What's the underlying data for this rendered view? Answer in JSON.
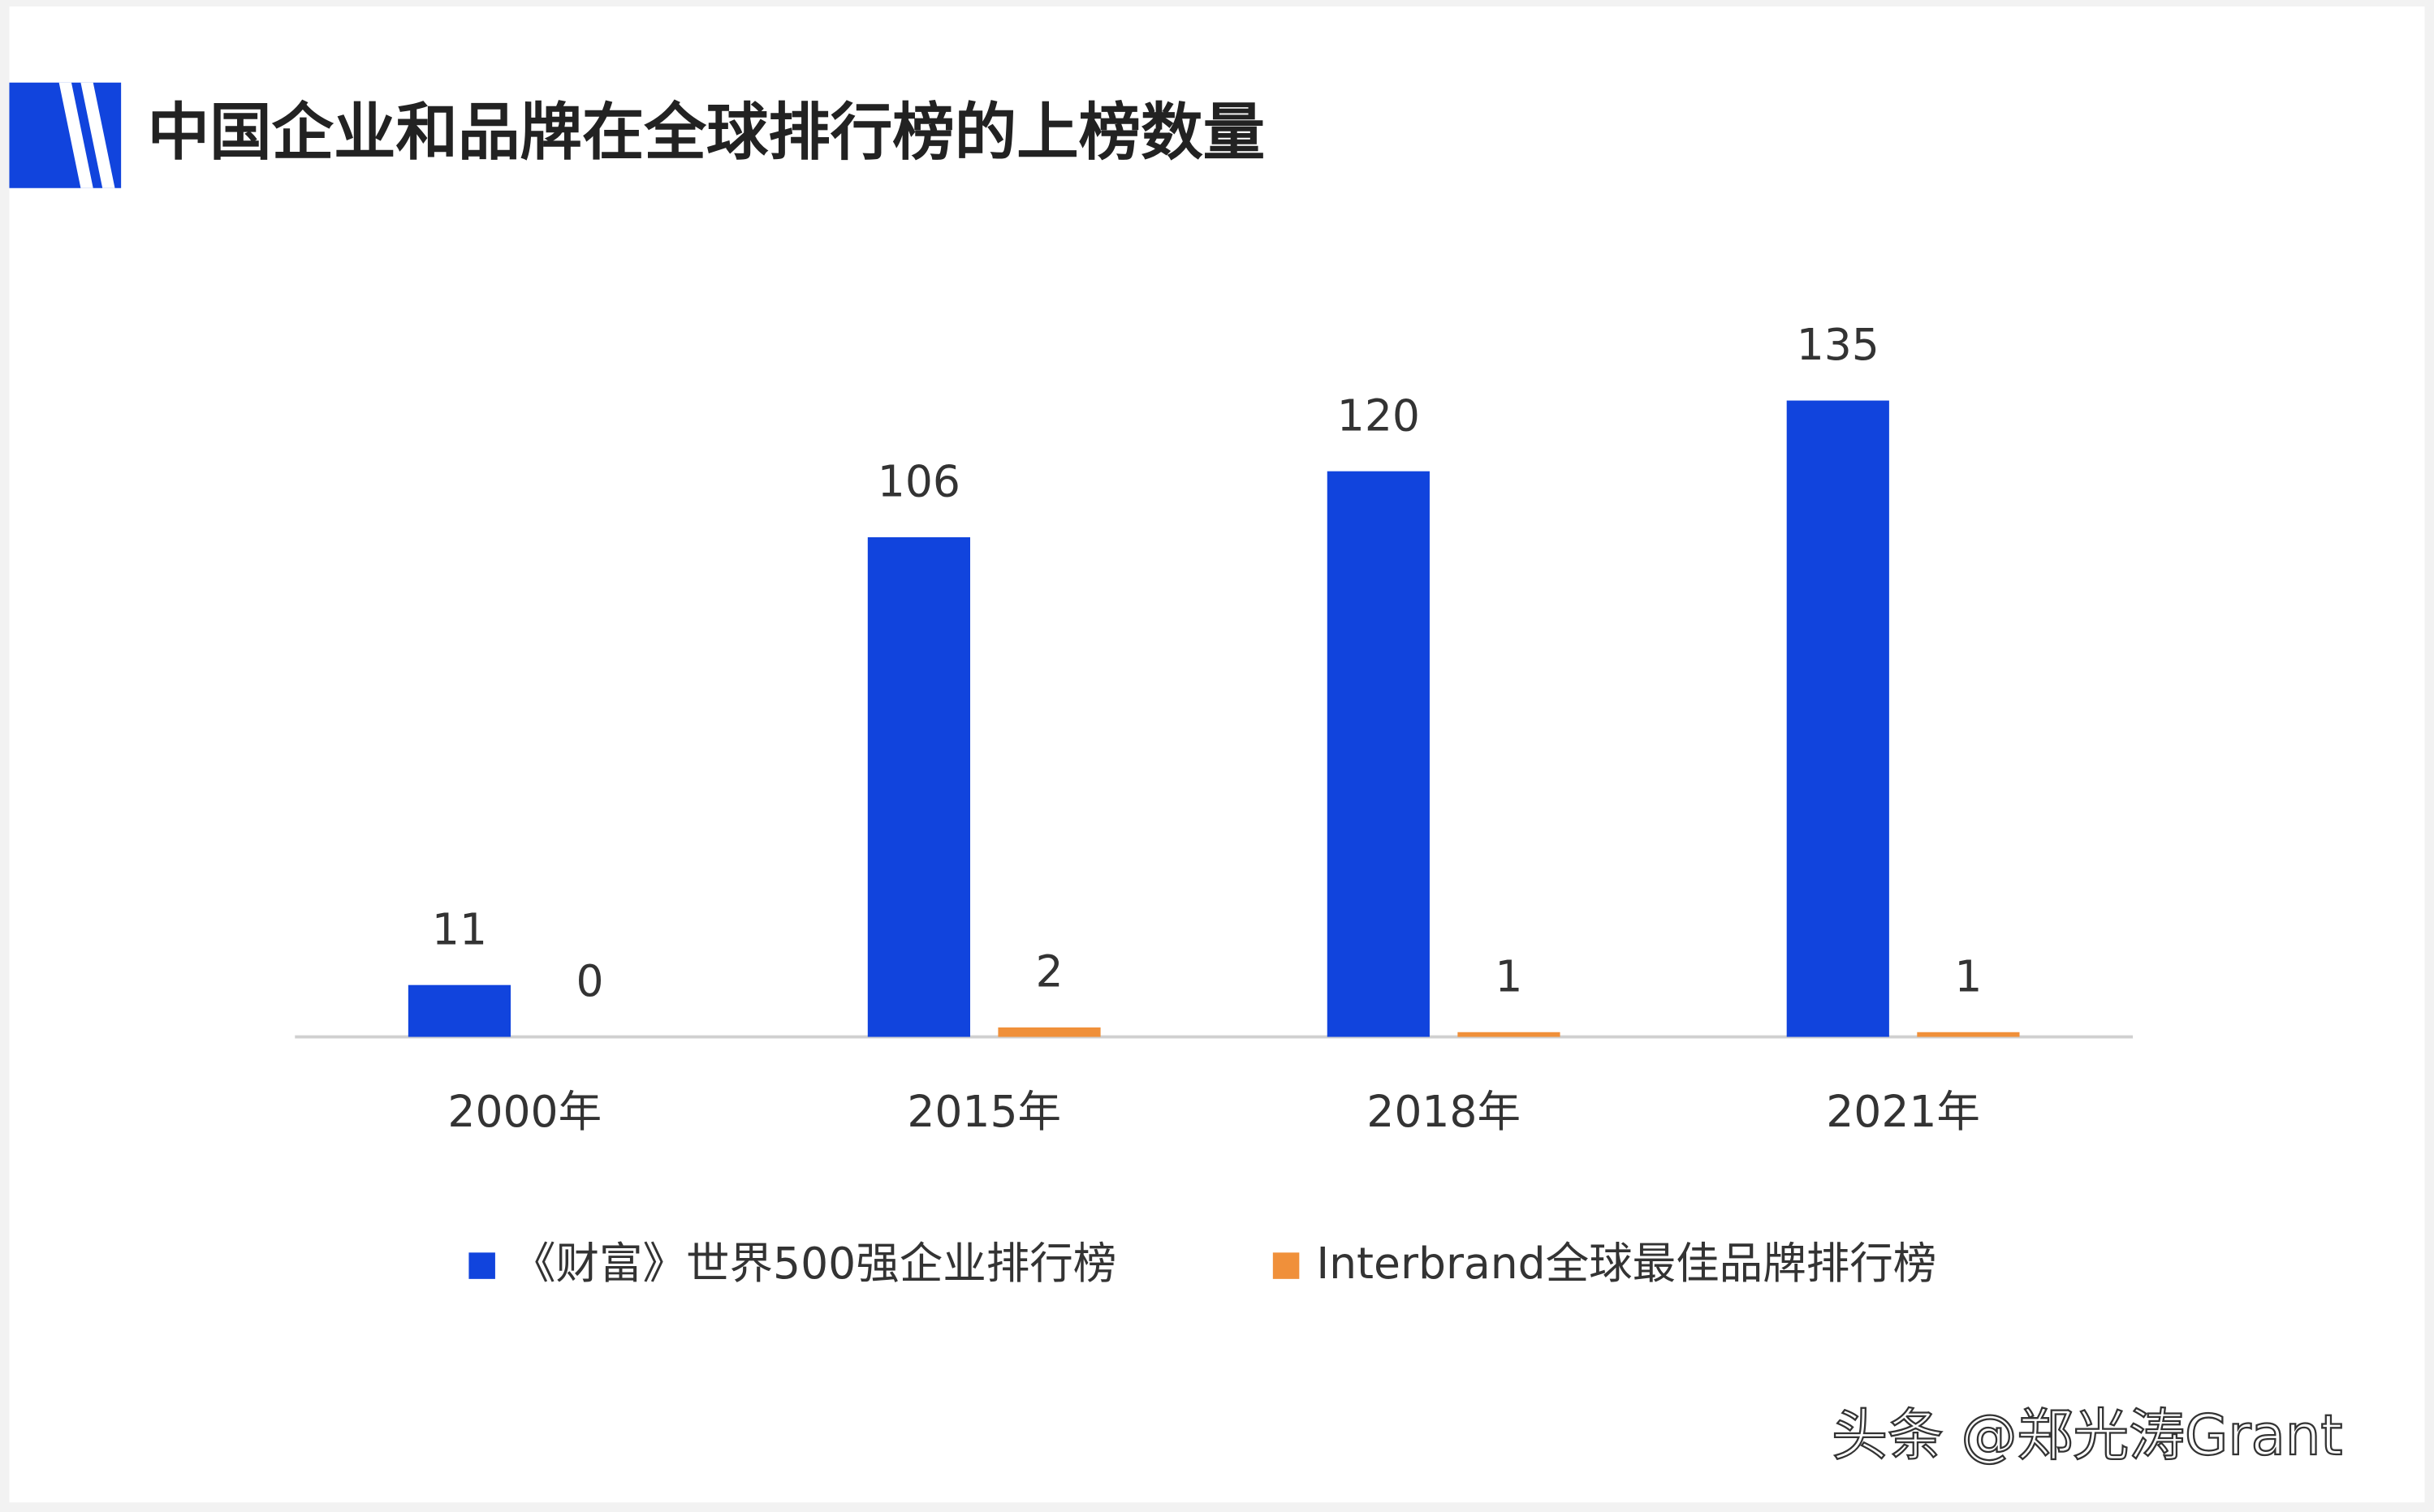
{
  "chart_data": {
    "type": "bar",
    "title": "中国企业和品牌在全球排行榜的上榜数量",
    "categories": [
      "2000年",
      "2015年",
      "2018年",
      "2021年"
    ],
    "series": [
      {
        "name": "《财富》世界500强企业排行榜",
        "color": "#1144dd",
        "values": [
          11,
          106,
          120,
          135
        ]
      },
      {
        "name": "Interbrand全球最佳品牌排行榜",
        "color": "#f0903a",
        "values": [
          0,
          2,
          1,
          1
        ]
      }
    ],
    "ylim": [
      0,
      160
    ],
    "watermark": "头条 @郑光涛Grant"
  }
}
